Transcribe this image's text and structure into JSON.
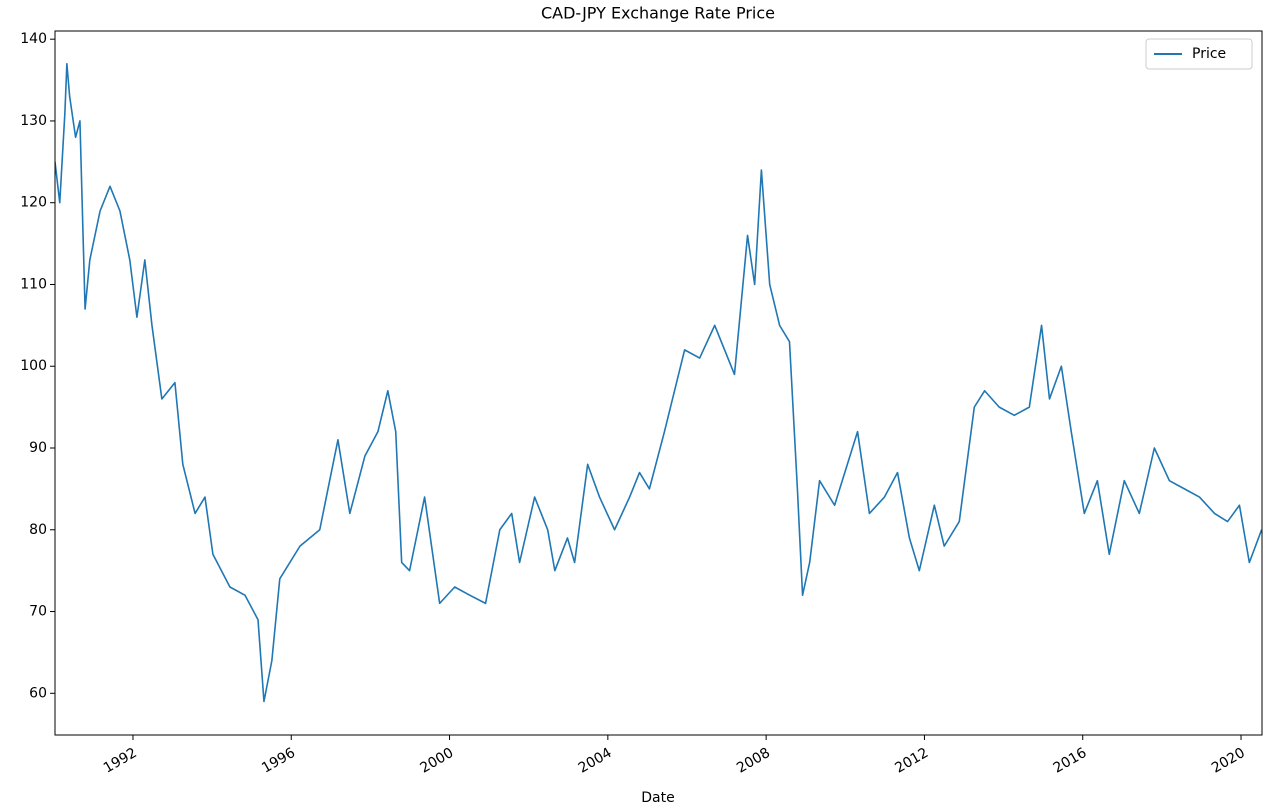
{
  "chart_data": {
    "type": "line",
    "title": "CAD-JPY Exchange Rate Price",
    "x_label": "Date",
    "xlim": [
      1990.03,
      2020.53
    ],
    "ylim": [
      54.9,
      141.0
    ],
    "xticks": [
      1992,
      1996,
      2000,
      2004,
      2008,
      2012,
      2016,
      2020
    ],
    "yticks": [
      60,
      70,
      80,
      90,
      100,
      110,
      120,
      130,
      140
    ],
    "legend_position": "upper right",
    "x": [
      1990.03,
      1990.15,
      1990.28,
      1990.33,
      1990.4,
      1990.55,
      1990.66,
      1990.79,
      1990.91,
      1991.17,
      1991.42,
      1991.67,
      1991.92,
      1992.1,
      1992.3,
      1992.48,
      1992.73,
      1993.06,
      1993.26,
      1993.57,
      1993.82,
      1994.02,
      1994.45,
      1994.83,
      1995.16,
      1995.31,
      1995.51,
      1995.71,
      1996.22,
      1996.72,
      1996.97,
      1997.18,
      1997.48,
      1997.86,
      1998.19,
      1998.44,
      1998.64,
      1998.79,
      1998.99,
      1999.37,
      1999.75,
      2000.13,
      2000.51,
      2000.91,
      2001.27,
      2001.57,
      2001.77,
      2002.15,
      2002.48,
      2002.66,
      2002.98,
      2003.16,
      2003.49,
      2003.79,
      2004.17,
      2004.55,
      2004.8,
      2005.05,
      2005.43,
      2005.94,
      2006.32,
      2006.7,
      2007.2,
      2007.53,
      2007.71,
      2007.88,
      2008.09,
      2008.34,
      2008.59,
      2008.79,
      2008.92,
      2009.1,
      2009.35,
      2009.73,
      2010.31,
      2010.61,
      2010.99,
      2011.32,
      2011.62,
      2011.87,
      2012.25,
      2012.5,
      2012.88,
      2013.26,
      2013.52,
      2013.89,
      2014.27,
      2014.65,
      2014.96,
      2015.16,
      2015.46,
      2015.71,
      2016.04,
      2016.37,
      2016.67,
      2017.05,
      2017.43,
      2017.81,
      2018.19,
      2018.57,
      2018.95,
      2019.33,
      2019.66,
      2019.96,
      2020.21,
      2020.52
    ],
    "series": [
      {
        "name": "Price",
        "color": "#1f77b4",
        "values": [
          125,
          120,
          131,
          137,
          133,
          128,
          130,
          107,
          113,
          119,
          122,
          119,
          113,
          106,
          113,
          105,
          96,
          98,
          88,
          82,
          84,
          77,
          73,
          72,
          69,
          59,
          64,
          74,
          78,
          80,
          86,
          91,
          82,
          89,
          92,
          97,
          92,
          76,
          75,
          84,
          71,
          73,
          72,
          71,
          80,
          82,
          76,
          84,
          80,
          75,
          79,
          76,
          88,
          84,
          80,
          84,
          87,
          85,
          92,
          102,
          101,
          105,
          99,
          116,
          110,
          124,
          110,
          105,
          103,
          85,
          72,
          76,
          86,
          83,
          92,
          82,
          84,
          87,
          79,
          75,
          83,
          78,
          81,
          95,
          97,
          95,
          94,
          95,
          105,
          96,
          100,
          92,
          82,
          86,
          77,
          86,
          82,
          90,
          86,
          85,
          84,
          82,
          81,
          83,
          76,
          80
        ]
      }
    ]
  }
}
